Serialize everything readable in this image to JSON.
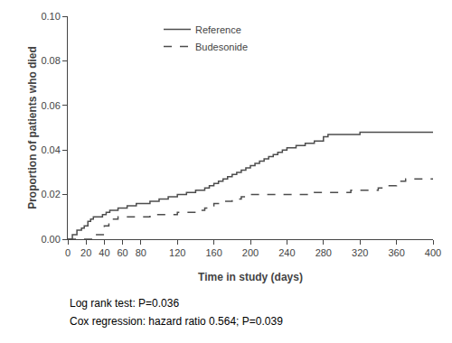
{
  "chart_data": {
    "type": "step",
    "xlabel": "Time in study (days)",
    "ylabel": "Proportion of patients who died",
    "xlim": [
      0,
      400
    ],
    "ylim": [
      0,
      0.1
    ],
    "xticks": [
      0,
      20,
      40,
      60,
      80,
      120,
      160,
      200,
      240,
      280,
      320,
      360,
      400
    ],
    "yticks": [
      {
        "value": 0,
        "label": "0.00"
      },
      {
        "value": 0.02,
        "label": "0.02"
      },
      {
        "value": 0.04,
        "label": "0.04"
      },
      {
        "value": 0.06,
        "label": "0.06"
      },
      {
        "value": 0.08,
        "label": "0.08"
      },
      {
        "value": 0.1,
        "label": "0.10"
      }
    ],
    "grid": false,
    "legend": "top",
    "annotations": [
      "Log rank test: P=0.036",
      "Cox regression: hazard ratio 0.564; P=0.039"
    ],
    "series": [
      {
        "name": "Reference",
        "color": "#4d4d4d",
        "line_style": "solid",
        "x": [
          0,
          5,
          10,
          15,
          18,
          22,
          25,
          28,
          32,
          38,
          42,
          46,
          50,
          55,
          60,
          65,
          70,
          75,
          80,
          90,
          100,
          110,
          120,
          130,
          140,
          150,
          155,
          160,
          165,
          170,
          175,
          180,
          185,
          190,
          195,
          200,
          205,
          210,
          215,
          220,
          225,
          230,
          235,
          240,
          245,
          250,
          255,
          260,
          265,
          270,
          275,
          280,
          285,
          290,
          295,
          300,
          310,
          320,
          330,
          340,
          350,
          360,
          370,
          380,
          390,
          400
        ],
        "values": [
          0,
          0.002,
          0.004,
          0.005,
          0.006,
          0.008,
          0.009,
          0.01,
          0.01,
          0.011,
          0.012,
          0.013,
          0.013,
          0.014,
          0.014,
          0.015,
          0.015,
          0.016,
          0.016,
          0.017,
          0.018,
          0.019,
          0.02,
          0.021,
          0.022,
          0.023,
          0.024,
          0.025,
          0.026,
          0.027,
          0.028,
          0.029,
          0.03,
          0.031,
          0.032,
          0.033,
          0.034,
          0.035,
          0.036,
          0.037,
          0.038,
          0.039,
          0.04,
          0.041,
          0.041,
          0.042,
          0.042,
          0.043,
          0.043,
          0.044,
          0.044,
          0.046,
          0.047,
          0.047,
          0.047,
          0.047,
          0.047,
          0.048,
          0.048,
          0.048,
          0.048,
          0.048,
          0.048,
          0.048,
          0.048,
          0.048
        ]
      },
      {
        "name": "Budesonide",
        "color": "#4d4d4d",
        "line_style": "dashed",
        "x": [
          0,
          20,
          30,
          40,
          45,
          50,
          55,
          60,
          65,
          70,
          75,
          80,
          90,
          100,
          110,
          120,
          130,
          140,
          150,
          155,
          160,
          165,
          170,
          175,
          180,
          190,
          200,
          205,
          210,
          215,
          220,
          230,
          240,
          250,
          260,
          270,
          280,
          290,
          300,
          310,
          320,
          330,
          340,
          350,
          360,
          370,
          380,
          390,
          400
        ],
        "values": [
          0,
          0.0,
          0.002,
          0.006,
          0.008,
          0.009,
          0.01,
          0.01,
          0.01,
          0.01,
          0.01,
          0.01,
          0.011,
          0.011,
          0.011,
          0.012,
          0.012,
          0.013,
          0.014,
          0.015,
          0.016,
          0.017,
          0.017,
          0.017,
          0.018,
          0.019,
          0.02,
          0.02,
          0.02,
          0.02,
          0.02,
          0.02,
          0.02,
          0.02,
          0.02,
          0.021,
          0.021,
          0.021,
          0.021,
          0.022,
          0.022,
          0.022,
          0.023,
          0.024,
          0.026,
          0.027,
          0.027,
          0.027,
          0.027
        ]
      }
    ]
  }
}
